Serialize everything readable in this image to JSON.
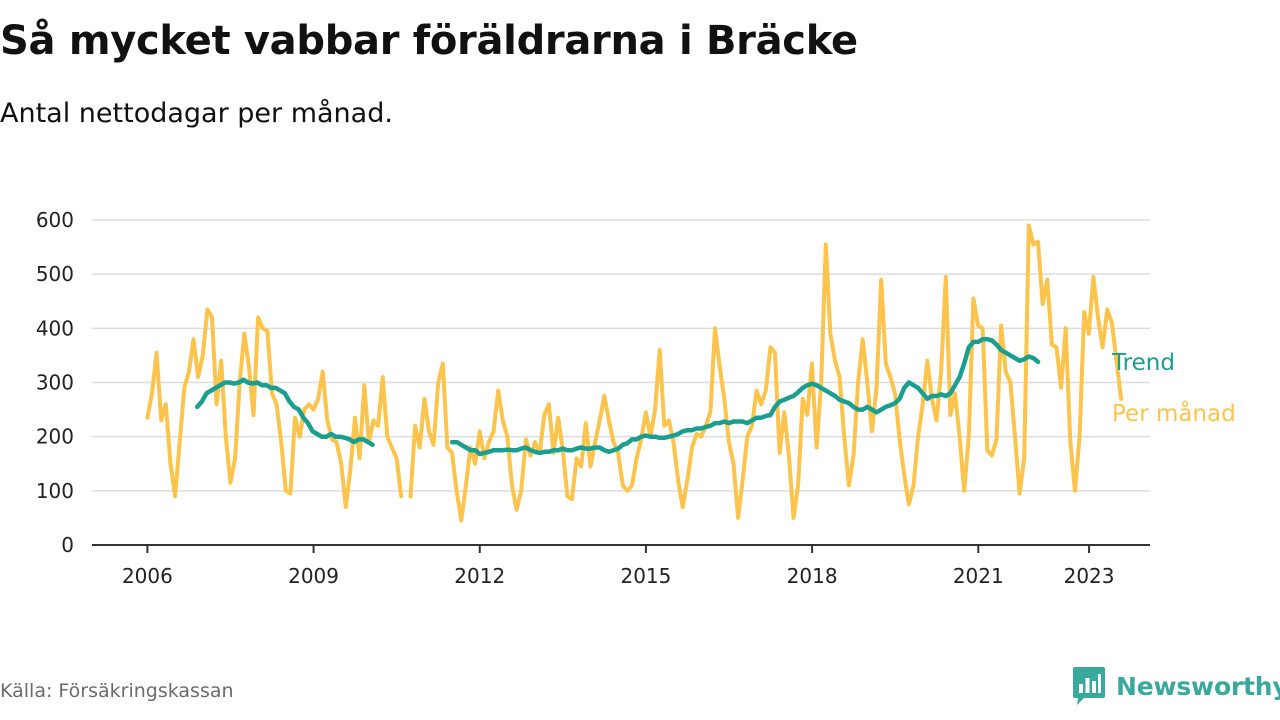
{
  "header": {
    "title": "Så mycket vabbar föräldrarna i Bräcke",
    "subtitle": "Antal nettodagar per månad."
  },
  "footer": {
    "source": "Källa: Försäkringskassan",
    "brand": "Newsworthy",
    "brand_icon": "bar-chart-speech-bubble-icon"
  },
  "colors": {
    "monthly": "#fcc44c",
    "trend": "#1a9e8f",
    "grid": "#dddddd",
    "axis": "#333333",
    "brand": "#3aa89d"
  },
  "chart_data": {
    "type": "line",
    "title": "Så mycket vabbar föräldrarna i Bräcke",
    "subtitle": "Antal nettodagar per månad.",
    "xlabel": "",
    "ylabel": "",
    "ylim": [
      0,
      600
    ],
    "xlim": [
      2005.0,
      2024.1
    ],
    "yticks": [
      0,
      100,
      200,
      300,
      400,
      500,
      600
    ],
    "xticks": [
      2006,
      2009,
      2012,
      2015,
      2018,
      2021,
      2023
    ],
    "grid": true,
    "legend": "direct labels at right end of lines",
    "series": [
      {
        "name": "Per månad",
        "label": "Per månad",
        "color": "#fcc44c",
        "segments": [
          {
            "start": 2006.0,
            "step": 0.0833,
            "values": [
              235,
              280,
              355,
              230,
              260,
              150,
              90,
              190,
              290,
              320,
              380,
              310,
              350,
              435,
              420,
              260,
              340,
              200,
              115,
              160,
              300,
              390,
              330,
              240,
              420,
              400,
              395,
              280,
              260,
              190,
              100,
              95,
              235,
              200,
              250,
              260,
              250,
              270,
              320,
              230,
              195,
              190,
              150,
              70,
              140,
              235,
              160,
              295,
              190,
              230,
              220,
              310,
              200,
              180,
              160,
              90
            ]
          },
          {
            "start": 2010.75,
            "step": 0.0833,
            "values": [
              90,
              220,
              180,
              270,
              210,
              185,
              300,
              335,
              180,
              170,
              100,
              45,
              110,
              180,
              150,
              210,
              160,
              190,
              210,
              285,
              230,
              200,
              110,
              65,
              100,
              195,
              165,
              190,
              170,
              240,
              260,
              170,
              235,
              175,
              90,
              85,
              160,
              145,
              225,
              145,
              190,
              230,
              275,
              230,
              190,
              170,
              110,
              100,
              110,
              160,
              195,
              245,
              200,
              250,
              360,
              220,
              230,
              190,
              120,
              70,
              120,
              180,
              205,
              200,
              220,
              245,
              400,
              330,
              270,
              190,
              150,
              50,
              120,
              200,
              220,
              285,
              260,
              285,
              365,
              355,
              170,
              245,
              165,
              50,
              110,
              270,
              240,
              335,
              180,
              300,
              555,
              390,
              340,
              310,
              200,
              110,
              165,
              300,
              380,
              300,
              210,
              290,
              490,
              335,
              310,
              280,
              195,
              130,
              75,
              110,
              200,
              260,
              340,
              270,
              230,
              320,
              495,
              240,
              280,
              200,
              100,
              200,
              455,
              405,
              400,
              175,
              165,
              195,
              405,
              320,
              300,
              200,
              95,
              160,
              590,
              555,
              560,
              445,
              490,
              370,
              365,
              290,
              400,
              190,
              100,
              200,
              430,
              390,
              495,
              420,
              365,
              435,
              410,
              340,
              270
            ]
          }
        ]
      },
      {
        "name": "Trend",
        "label": "Trend",
        "color": "#1a9e8f",
        "segments": [
          {
            "start": 2006.9,
            "step": 0.0833,
            "values": [
              255,
              265,
              280,
              285,
              290,
              295,
              300,
              300,
              298,
              300,
              305,
              300,
              298,
              300,
              295,
              295,
              290,
              290,
              285,
              280,
              265,
              255,
              250,
              235,
              225,
              210,
              205,
              200,
              200,
              205,
              200,
              200,
              198,
              195,
              190,
              195,
              195,
              190,
              185
            ]
          },
          {
            "start": 2011.5,
            "step": 0.0833,
            "values": [
              190,
              190,
              185,
              180,
              175,
              175,
              168,
              170,
              172,
              175,
              175,
              175,
              176,
              175,
              175,
              178,
              180,
              175,
              172,
              170,
              172,
              172,
              175,
              175,
              178,
              175,
              175,
              178,
              180,
              178,
              178,
              180,
              180,
              175,
              172,
              175,
              178,
              185,
              188,
              195,
              195,
              200,
              202,
              200,
              200,
              198,
              198,
              200,
              202,
              205,
              210,
              212,
              212,
              215,
              215,
              218,
              220,
              225,
              225,
              228,
              225,
              228,
              228,
              228,
              225,
              230,
              235,
              235,
              238,
              240,
              255,
              265,
              268,
              272,
              275,
              282,
              290,
              295,
              298,
              295,
              290,
              285,
              280,
              275,
              268,
              265,
              262,
              255,
              250,
              250,
              255,
              250,
              245,
              250,
              255,
              258,
              262,
              270,
              290,
              300,
              295,
              290,
              280,
              270,
              275,
              275,
              278,
              275,
              280,
              295,
              310,
              335,
              365,
              375,
              375,
              380,
              380,
              378,
              370,
              360,
              355,
              350,
              345,
              340,
              343,
              348,
              345,
              338
            ]
          }
        ]
      }
    ]
  }
}
